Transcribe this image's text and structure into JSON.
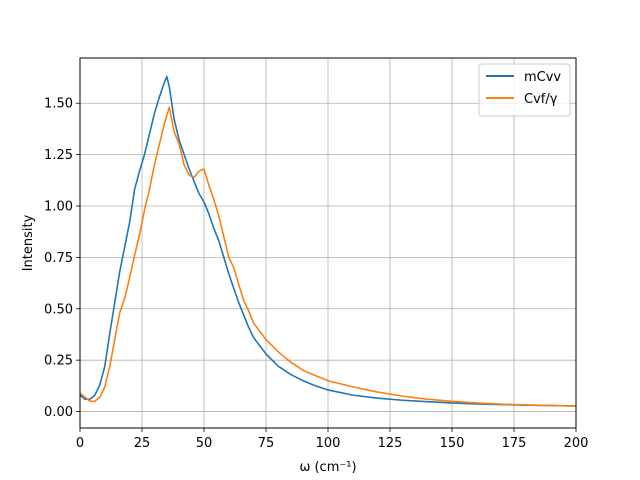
{
  "chart_data": {
    "type": "line",
    "xlabel": "ω (cm⁻¹)",
    "ylabel": "Intensity",
    "xlim": [
      0,
      200
    ],
    "ylim": [
      -0.08,
      1.72
    ],
    "grid": true,
    "legend_position": "top-right",
    "x_ticks": [
      "0",
      "25",
      "50",
      "75",
      "100",
      "125",
      "150",
      "175",
      "200"
    ],
    "y_ticks": [
      "0.00",
      "0.25",
      "0.50",
      "0.75",
      "1.00",
      "1.25",
      "1.50"
    ],
    "series": [
      {
        "name": "mCvv",
        "color": "#1f77b4",
        "x": [
          0,
          2,
          4,
          6,
          8,
          10,
          12,
          14,
          16,
          18,
          20,
          22,
          24,
          26,
          28,
          30,
          32,
          34,
          35,
          36,
          38,
          40,
          42,
          44,
          46,
          48,
          50,
          52,
          54,
          56,
          58,
          60,
          62,
          64,
          66,
          68,
          70,
          75,
          80,
          85,
          90,
          95,
          100,
          110,
          120,
          130,
          140,
          150,
          160,
          170,
          180,
          190,
          200
        ],
        "y": [
          0.08,
          0.06,
          0.06,
          0.08,
          0.13,
          0.22,
          0.38,
          0.53,
          0.68,
          0.8,
          0.92,
          1.08,
          1.17,
          1.25,
          1.35,
          1.45,
          1.53,
          1.6,
          1.63,
          1.58,
          1.42,
          1.32,
          1.25,
          1.18,
          1.12,
          1.06,
          1.02,
          0.96,
          0.89,
          0.83,
          0.75,
          0.67,
          0.6,
          0.53,
          0.47,
          0.41,
          0.36,
          0.28,
          0.22,
          0.18,
          0.15,
          0.125,
          0.105,
          0.08,
          0.065,
          0.055,
          0.048,
          0.042,
          0.037,
          0.034,
          0.031,
          0.029,
          0.027
        ]
      },
      {
        "name": "Cvf/γ",
        "color": "#ff7f0e",
        "x": [
          0,
          2,
          4,
          6,
          8,
          10,
          12,
          14,
          16,
          18,
          20,
          22,
          24,
          26,
          28,
          30,
          32,
          34,
          36,
          38,
          40,
          42,
          44,
          46,
          48,
          50,
          52,
          54,
          56,
          58,
          60,
          62,
          64,
          66,
          68,
          70,
          75,
          80,
          85,
          90,
          95,
          100,
          110,
          120,
          130,
          140,
          150,
          160,
          170,
          180,
          190,
          200
        ],
        "y": [
          0.09,
          0.07,
          0.05,
          0.05,
          0.07,
          0.12,
          0.22,
          0.35,
          0.48,
          0.55,
          0.65,
          0.76,
          0.86,
          0.98,
          1.08,
          1.2,
          1.3,
          1.4,
          1.48,
          1.36,
          1.3,
          1.2,
          1.15,
          1.14,
          1.17,
          1.18,
          1.1,
          1.03,
          0.95,
          0.85,
          0.75,
          0.7,
          0.62,
          0.54,
          0.49,
          0.43,
          0.35,
          0.29,
          0.24,
          0.2,
          0.175,
          0.15,
          0.12,
          0.095,
          0.075,
          0.06,
          0.05,
          0.042,
          0.036,
          0.032,
          0.029,
          0.027
        ]
      }
    ]
  }
}
